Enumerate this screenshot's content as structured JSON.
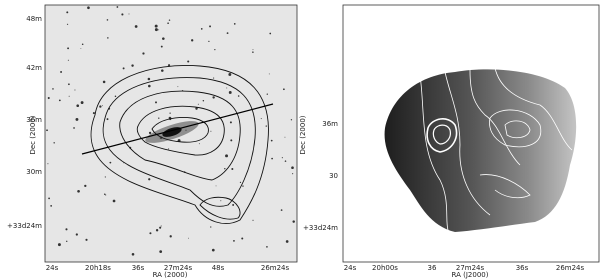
{
  "panels": [
    {
      "y_label": "Dec (2000)",
      "x_label": "RA (2000)",
      "y_ticks": [
        "48m",
        "42m",
        "36m",
        "30m",
        "+33d24m"
      ],
      "x_ticks": [
        "24s",
        "20h18s",
        "36s",
        "27m24s",
        "48s",
        "26m24s"
      ]
    },
    {
      "y_label": "Dec (2000)",
      "x_label": "RA (J2000)",
      "y_ticks": [
        "36m",
        "30",
        "+33d24m"
      ],
      "x_ticks": [
        "24s",
        "20h00s",
        "36",
        "27m24s",
        "36s",
        "26m24s"
      ]
    }
  ]
}
